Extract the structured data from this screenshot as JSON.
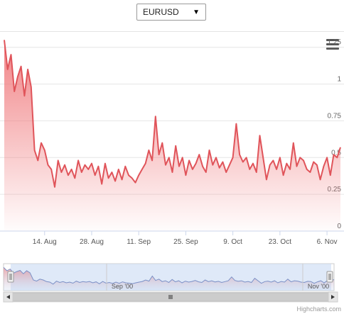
{
  "selector": {
    "selected": "EURUSD",
    "arrow_icon": "triangle-down-icon"
  },
  "menu": {
    "icon": "hamburger-menu-icon"
  },
  "credits": "Highcharts.com",
  "colors": {
    "line": "#e0545a",
    "fill_top": "#f07c7f",
    "nav_fill": "#c9dbf3",
    "nav_line": "#7b90c6",
    "grid": "#e6e6e6"
  },
  "navigator": {
    "labels": [
      "Sep '00",
      "Nov '00"
    ]
  },
  "chart_data": {
    "type": "area",
    "title": "",
    "xlabel": "",
    "ylabel": "",
    "ylim": [
      0,
      1.35
    ],
    "yticks": [
      0,
      0.25,
      0.5,
      0.75,
      1,
      1.25
    ],
    "ytick_labels": [
      "0",
      "0.25",
      "0.5",
      "0.75",
      "1",
      "1.25"
    ],
    "xtick_labels": [
      "14. Aug",
      "28. Aug",
      "11. Sep",
      "25. Sep",
      "9. Oct",
      "23. Oct",
      "6. Nov"
    ],
    "xtick_index": [
      12,
      26,
      40,
      54,
      68,
      82,
      96
    ],
    "series": [
      {
        "values": [
          1.3,
          1.1,
          1.2,
          0.95,
          1.05,
          1.12,
          0.92,
          1.1,
          0.98,
          0.55,
          0.48,
          0.6,
          0.55,
          0.45,
          0.42,
          0.3,
          0.48,
          0.4,
          0.45,
          0.38,
          0.42,
          0.36,
          0.48,
          0.4,
          0.45,
          0.42,
          0.46,
          0.38,
          0.44,
          0.32,
          0.46,
          0.36,
          0.4,
          0.34,
          0.42,
          0.35,
          0.44,
          0.38,
          0.36,
          0.33,
          0.38,
          0.42,
          0.46,
          0.55,
          0.48,
          0.78,
          0.52,
          0.6,
          0.45,
          0.5,
          0.4,
          0.58,
          0.44,
          0.5,
          0.38,
          0.48,
          0.42,
          0.46,
          0.52,
          0.44,
          0.4,
          0.55,
          0.45,
          0.5,
          0.43,
          0.47,
          0.4,
          0.45,
          0.5,
          0.73,
          0.52,
          0.47,
          0.5,
          0.42,
          0.46,
          0.4,
          0.65,
          0.5,
          0.35,
          0.45,
          0.48,
          0.42,
          0.5,
          0.38,
          0.46,
          0.42,
          0.6,
          0.44,
          0.5,
          0.48,
          0.42,
          0.4,
          0.47,
          0.45,
          0.35,
          0.44,
          0.5,
          0.38,
          0.52,
          0.5,
          0.57
        ]
      }
    ]
  }
}
